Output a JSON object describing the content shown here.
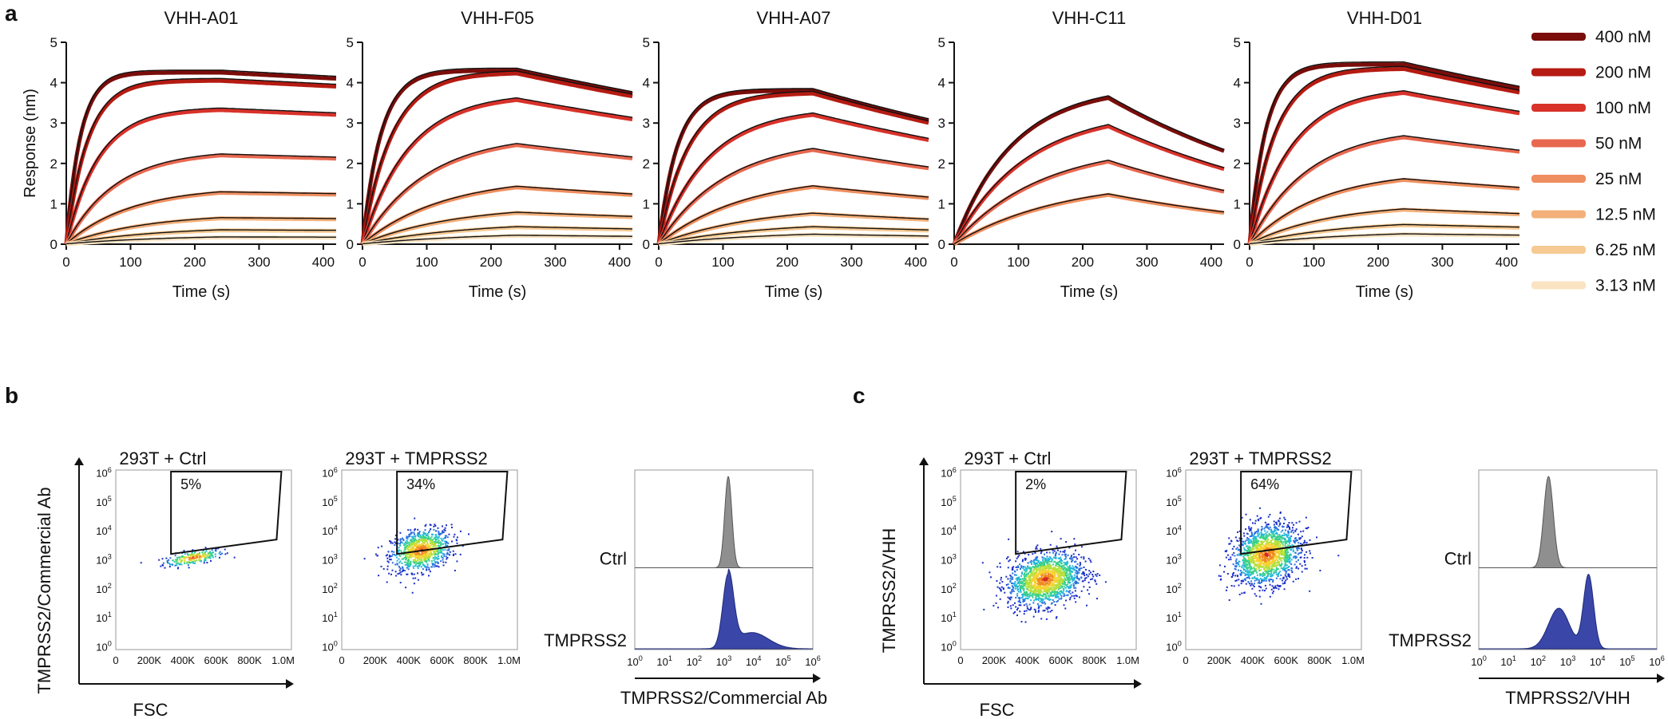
{
  "panel_labels": {
    "a": "a",
    "b": "b",
    "c": "c"
  },
  "colors": {
    "series": [
      "#7a0d0a",
      "#b51b12",
      "#d8322a",
      "#e8684f",
      "#ef8e5e",
      "#f3b07a",
      "#f6ca92",
      "#f9e3c2"
    ],
    "fit": "#111111",
    "ctrl_hist": "#8f8f8f",
    "tmprss2_hist": "#3a47a8"
  },
  "chart_data": [
    {
      "type": "line",
      "panel": "a",
      "title": "VHH-A01",
      "xlabel": "Time (s)",
      "ylabel": "Response (nm)",
      "xlim": [
        0,
        420
      ],
      "ylim": [
        0,
        5
      ],
      "xticks": [
        "0",
        "100",
        "200",
        "300",
        "400"
      ],
      "yticks": [
        "0",
        "1",
        "2",
        "3",
        "4",
        "5"
      ],
      "association_end_s": 240,
      "series": [
        {
          "name": "400 nM",
          "plateau": 4.25,
          "kobs": 0.045,
          "kd": 0.0002
        },
        {
          "name": "200 nM",
          "plateau": 4.05,
          "kobs": 0.03,
          "kd": 0.0002
        },
        {
          "name": "100 nM",
          "plateau": 3.35,
          "kobs": 0.02,
          "kd": 0.0002
        },
        {
          "name": "50 nM",
          "plateau": 2.3,
          "kobs": 0.013,
          "kd": 0.0002
        },
        {
          "name": "25 nM",
          "plateau": 1.4,
          "kobs": 0.01,
          "kd": 0.0002
        },
        {
          "name": "12.5 nM",
          "plateau": 0.75,
          "kobs": 0.008,
          "kd": 0.0002
        },
        {
          "name": "6.25 nM",
          "plateau": 0.42,
          "kobs": 0.007,
          "kd": 0.0002
        },
        {
          "name": "3.13 nM",
          "plateau": 0.22,
          "kobs": 0.006,
          "kd": 0.0002
        }
      ]
    },
    {
      "type": "line",
      "panel": "a",
      "title": "VHH-F05",
      "xlabel": "Time (s)",
      "ylabel": "",
      "xlim": [
        0,
        420
      ],
      "ylim": [
        0,
        5
      ],
      "xticks": [
        "0",
        "100",
        "200",
        "300",
        "400"
      ],
      "yticks": [
        "0",
        "1",
        "2",
        "3",
        "4",
        "5"
      ],
      "association_end_s": 240,
      "series": [
        {
          "name": "400 nM",
          "plateau": 4.3,
          "kobs": 0.035,
          "kd": 0.0008
        },
        {
          "name": "200 nM",
          "plateau": 4.25,
          "kobs": 0.022,
          "kd": 0.0008
        },
        {
          "name": "100 nM",
          "plateau": 3.7,
          "kobs": 0.014,
          "kd": 0.0008
        },
        {
          "name": "50 nM",
          "plateau": 2.7,
          "kobs": 0.01,
          "kd": 0.0008
        },
        {
          "name": "25 nM",
          "plateau": 1.65,
          "kobs": 0.008,
          "kd": 0.0008
        },
        {
          "name": "12.5 nM",
          "plateau": 0.95,
          "kobs": 0.007,
          "kd": 0.0008
        },
        {
          "name": "6.25 nM",
          "plateau": 0.55,
          "kobs": 0.006,
          "kd": 0.0008
        },
        {
          "name": "3.13 nM",
          "plateau": 0.3,
          "kobs": 0.005,
          "kd": 0.0008
        }
      ]
    },
    {
      "type": "line",
      "panel": "a",
      "title": "VHH-A07",
      "xlabel": "Time (s)",
      "ylabel": "",
      "xlim": [
        0,
        420
      ],
      "ylim": [
        0,
        5
      ],
      "xticks": [
        "0",
        "100",
        "200",
        "300",
        "400"
      ],
      "yticks": [
        "0",
        "1",
        "2",
        "3",
        "4",
        "5"
      ],
      "association_end_s": 240,
      "series": [
        {
          "name": "400 nM",
          "plateau": 3.8,
          "kobs": 0.035,
          "kd": 0.0012
        },
        {
          "name": "200 nM",
          "plateau": 3.75,
          "kobs": 0.022,
          "kd": 0.0012
        },
        {
          "name": "100 nM",
          "plateau": 3.35,
          "kobs": 0.013,
          "kd": 0.0012
        },
        {
          "name": "50 nM",
          "plateau": 2.6,
          "kobs": 0.0095,
          "kd": 0.0012
        },
        {
          "name": "25 nM",
          "plateau": 1.7,
          "kobs": 0.0075,
          "kd": 0.0012
        },
        {
          "name": "12.5 nM",
          "plateau": 0.95,
          "kobs": 0.0065,
          "kd": 0.0012
        },
        {
          "name": "6.25 nM",
          "plateau": 0.55,
          "kobs": 0.006,
          "kd": 0.0012
        },
        {
          "name": "3.13 nM",
          "plateau": 0.32,
          "kobs": 0.0055,
          "kd": 0.0012
        }
      ]
    },
    {
      "type": "line",
      "panel": "a",
      "title": "VHH-C11",
      "xlabel": "Time (s)",
      "ylabel": "",
      "xlim": [
        0,
        420
      ],
      "ylim": [
        0,
        5
      ],
      "xticks": [
        "0",
        "100",
        "200",
        "300",
        "400"
      ],
      "yticks": [
        "0",
        "1",
        "2",
        "3",
        "4",
        "5"
      ],
      "association_end_s": 240,
      "series": [
        {
          "name": "400 nM",
          "plateau": 3.9,
          "kobs": 0.011,
          "kd": 0.0025
        },
        {
          "name": "200 nM",
          "plateau": 3.3,
          "kobs": 0.009,
          "kd": 0.0025
        },
        {
          "name": "100 nM",
          "plateau": 2.45,
          "kobs": 0.0075,
          "kd": 0.0025
        },
        {
          "name": "50 nM",
          "plateau": 1.6,
          "kobs": 0.006,
          "kd": 0.0025
        }
      ]
    },
    {
      "type": "line",
      "panel": "a",
      "title": "VHH-D01",
      "xlabel": "Time (s)",
      "ylabel": "",
      "xlim": [
        0,
        420
      ],
      "ylim": [
        0,
        5
      ],
      "xticks": [
        "0",
        "100",
        "200",
        "300",
        "400"
      ],
      "yticks": [
        "0",
        "1",
        "2",
        "3",
        "4",
        "5"
      ],
      "association_end_s": 240,
      "series": [
        {
          "name": "400 nM",
          "plateau": 4.45,
          "kobs": 0.04,
          "kd": 0.0008
        },
        {
          "name": "200 nM",
          "plateau": 4.35,
          "kobs": 0.025,
          "kd": 0.0008
        },
        {
          "name": "100 nM",
          "plateau": 3.85,
          "kobs": 0.015,
          "kd": 0.0008
        },
        {
          "name": "50 nM",
          "plateau": 2.85,
          "kobs": 0.011,
          "kd": 0.0008
        },
        {
          "name": "25 nM",
          "plateau": 1.8,
          "kobs": 0.009,
          "kd": 0.0008
        },
        {
          "name": "12.5 nM",
          "plateau": 1.0,
          "kobs": 0.008,
          "kd": 0.0008
        },
        {
          "name": "6.25 nM",
          "plateau": 0.58,
          "kobs": 0.007,
          "kd": 0.0008
        },
        {
          "name": "3.13 nM",
          "plateau": 0.32,
          "kobs": 0.006,
          "kd": 0.0008
        }
      ]
    },
    {
      "type": "scatter",
      "panel": "b",
      "title": "293T + Ctrl",
      "xlabel": "FSC",
      "ylabel": "TMPRSS2/Commercial Ab",
      "xticks": [
        "0",
        "200K",
        "400K",
        "600K",
        "800K",
        "1.0M"
      ],
      "yticks": [
        "10",
        "10",
        "10",
        "10",
        "10",
        "10",
        "10"
      ],
      "yticks_exp": [
        "0",
        "1",
        "2",
        "3",
        "4",
        "5",
        "6"
      ],
      "gate_label": "5%",
      "cluster": {
        "x_center": 460000,
        "y_log_center": 3.1,
        "x_spread": 90000,
        "y_spread": 0.12,
        "n": 220
      }
    },
    {
      "type": "scatter",
      "panel": "b",
      "title": "293T + TMPRSS2",
      "xlabel": "",
      "ylabel": "",
      "xticks": [
        "0",
        "200K",
        "400K",
        "600K",
        "800K",
        "1.0M"
      ],
      "yticks": [
        "10",
        "10",
        "10",
        "10",
        "10",
        "10",
        "10"
      ],
      "yticks_exp": [
        "0",
        "1",
        "2",
        "3",
        "4",
        "5",
        "6"
      ],
      "gate_label": "34%",
      "cluster": {
        "x_center": 470000,
        "y_log_center": 3.35,
        "x_spread": 90000,
        "y_spread": 0.35,
        "n": 900
      }
    },
    {
      "type": "histogram",
      "panel": "b",
      "xlabel": "TMPRSS2/Commercial Ab",
      "xticks": [
        "10",
        "10",
        "10",
        "10",
        "10",
        "10",
        "10"
      ],
      "xticks_exp": [
        "0",
        "1",
        "2",
        "3",
        "4",
        "5",
        "6"
      ],
      "series": [
        {
          "name": "Ctrl",
          "peak_log": 3.15,
          "width": 0.12
        },
        {
          "name": "TMPRSS2",
          "peak_log": 3.15,
          "width": 0.18,
          "tail_log": 4.6
        }
      ]
    },
    {
      "type": "scatter",
      "panel": "c",
      "title": "293T + Ctrl",
      "xlabel": "FSC",
      "ylabel": "TMPRSS2/VHH",
      "xticks": [
        "0",
        "200K",
        "400K",
        "600K",
        "800K",
        "1.0M"
      ],
      "yticks": [
        "10",
        "10",
        "10",
        "10",
        "10",
        "10",
        "10"
      ],
      "yticks_exp": [
        "0",
        "1",
        "2",
        "3",
        "4",
        "5",
        "6"
      ],
      "gate_label": "2%",
      "cluster": {
        "x_center": 500000,
        "y_log_center": 2.35,
        "x_spread": 110000,
        "y_spread": 0.45,
        "n": 1600
      }
    },
    {
      "type": "scatter",
      "panel": "c",
      "title": "293T + TMPRSS2",
      "xlabel": "",
      "ylabel": "",
      "xticks": [
        "0",
        "200K",
        "400K",
        "600K",
        "800K",
        "1.0M"
      ],
      "yticks": [
        "10",
        "10",
        "10",
        "10",
        "10",
        "10",
        "10"
      ],
      "yticks_exp": [
        "0",
        "1",
        "2",
        "3",
        "4",
        "5",
        "6"
      ],
      "gate_label": "64%",
      "cluster": {
        "x_center": 480000,
        "y_log_center": 3.2,
        "x_spread": 100000,
        "y_spread": 0.5,
        "n": 1600
      }
    },
    {
      "type": "histogram",
      "panel": "c",
      "xlabel": "TMPRSS2/VHH",
      "xticks": [
        "10",
        "10",
        "10",
        "10",
        "10",
        "10",
        "10"
      ],
      "xticks_exp": [
        "0",
        "1",
        "2",
        "3",
        "4",
        "5",
        "6"
      ],
      "series": [
        {
          "name": "Ctrl",
          "peak_log": 2.35,
          "width": 0.16
        },
        {
          "name": "TMPRSS2",
          "peak_log": 3.7,
          "width": 0.17,
          "shoulder_log": 2.7
        }
      ]
    }
  ],
  "legend": [
    "400 nM",
    "200 nM",
    "100 nM",
    "50 nM",
    "25 nM",
    "12.5 nM",
    "6.25 nM",
    "3.13 nM"
  ]
}
